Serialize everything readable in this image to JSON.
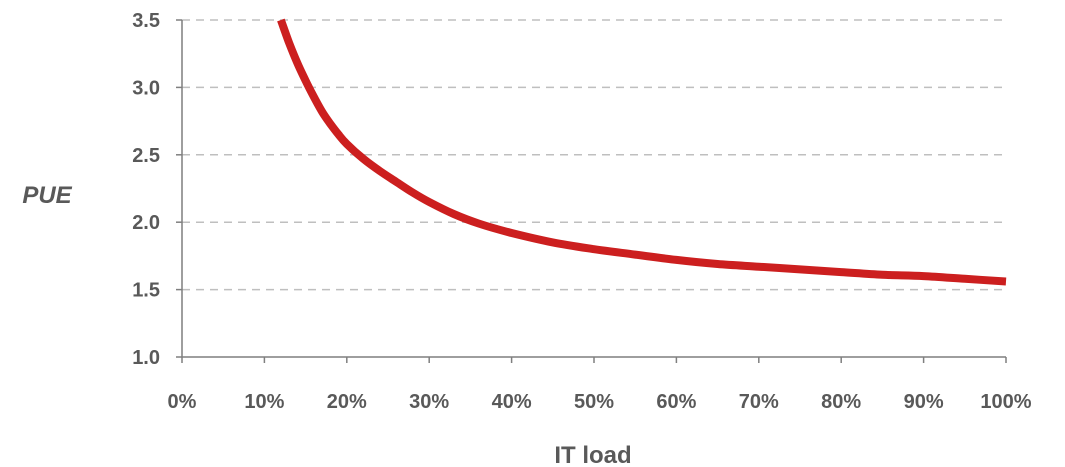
{
  "chart_data": {
    "type": "line",
    "title": "",
    "xlabel": "IT load",
    "ylabel": "PUE",
    "xlim": [
      0,
      100
    ],
    "ylim": [
      1.0,
      3.5
    ],
    "x_ticks": [
      {
        "value": 0,
        "label": "0%"
      },
      {
        "value": 10,
        "label": "10%"
      },
      {
        "value": 20,
        "label": "20%"
      },
      {
        "value": 30,
        "label": "30%"
      },
      {
        "value": 40,
        "label": "40%"
      },
      {
        "value": 50,
        "label": "50%"
      },
      {
        "value": 60,
        "label": "60%"
      },
      {
        "value": 70,
        "label": "70%"
      },
      {
        "value": 80,
        "label": "80%"
      },
      {
        "value": 90,
        "label": "90%"
      },
      {
        "value": 100,
        "label": "100%"
      }
    ],
    "y_ticks": [
      {
        "value": 1.0,
        "label": "1.0"
      },
      {
        "value": 1.5,
        "label": "1.5"
      },
      {
        "value": 2.0,
        "label": "2.0"
      },
      {
        "value": 2.5,
        "label": "2.5"
      },
      {
        "value": 3.0,
        "label": "3.0"
      },
      {
        "value": 3.5,
        "label": "3.5"
      }
    ],
    "grid": "horizontal dashed",
    "series": [
      {
        "color": "#cc1f1f",
        "points": [
          [
            12,
            3.5
          ],
          [
            13,
            3.33
          ],
          [
            14,
            3.18
          ],
          [
            15,
            3.05
          ],
          [
            16,
            2.93
          ],
          [
            17,
            2.82
          ],
          [
            18,
            2.73
          ],
          [
            19,
            2.65
          ],
          [
            20,
            2.58
          ],
          [
            22,
            2.47
          ],
          [
            24,
            2.38
          ],
          [
            26,
            2.3
          ],
          [
            28,
            2.22
          ],
          [
            30,
            2.15
          ],
          [
            33,
            2.06
          ],
          [
            36,
            1.99
          ],
          [
            40,
            1.92
          ],
          [
            45,
            1.85
          ],
          [
            50,
            1.8
          ],
          [
            55,
            1.76
          ],
          [
            60,
            1.72
          ],
          [
            65,
            1.69
          ],
          [
            70,
            1.67
          ],
          [
            75,
            1.65
          ],
          [
            80,
            1.63
          ],
          [
            85,
            1.61
          ],
          [
            90,
            1.6
          ],
          [
            95,
            1.58
          ],
          [
            100,
            1.56
          ]
        ]
      }
    ]
  }
}
